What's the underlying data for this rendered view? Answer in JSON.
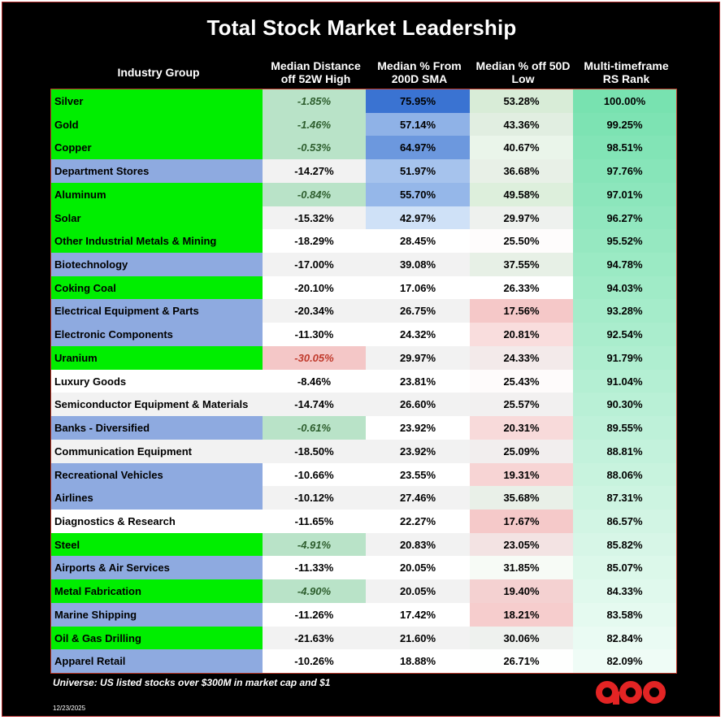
{
  "title": "Total Stock Market Leadership",
  "chart_data": {
    "type": "table",
    "title": "Total Stock Market Leadership",
    "columns": [
      "Industry Group",
      "Median Distance off 52W High",
      "Median % From 200D SMA",
      "Median % off 50D Low",
      "Multi-timeframe RS Rank"
    ],
    "rows": [
      {
        "group": "Silver",
        "group_color": "#00ee00",
        "dist_52w_high": "-1.85%",
        "from_200d_sma": "75.95%",
        "off_50d_low": "53.28%",
        "rs_rank": "100.00%"
      },
      {
        "group": "Gold",
        "group_color": "#00ee00",
        "dist_52w_high": "-1.46%",
        "from_200d_sma": "57.14%",
        "off_50d_low": "43.36%",
        "rs_rank": "99.25%"
      },
      {
        "group": "Copper",
        "group_color": "#00ee00",
        "dist_52w_high": "-0.53%",
        "from_200d_sma": "64.97%",
        "off_50d_low": "40.67%",
        "rs_rank": "98.51%"
      },
      {
        "group": "Department Stores",
        "group_color": "#8eaae0",
        "dist_52w_high": "-14.27%",
        "from_200d_sma": "51.97%",
        "off_50d_low": "36.68%",
        "rs_rank": "97.76%"
      },
      {
        "group": "Aluminum",
        "group_color": "#00ee00",
        "dist_52w_high": "-0.84%",
        "from_200d_sma": "55.70%",
        "off_50d_low": "49.58%",
        "rs_rank": "97.01%"
      },
      {
        "group": "Solar",
        "group_color": "#00ee00",
        "dist_52w_high": "-15.32%",
        "from_200d_sma": "42.97%",
        "off_50d_low": "29.97%",
        "rs_rank": "96.27%"
      },
      {
        "group": "Other Industrial Metals & Mining",
        "group_color": "#00ee00",
        "dist_52w_high": "-18.29%",
        "from_200d_sma": "28.45%",
        "off_50d_low": "25.50%",
        "rs_rank": "95.52%"
      },
      {
        "group": "Biotechnology",
        "group_color": "#8eaae0",
        "dist_52w_high": "-17.00%",
        "from_200d_sma": "39.08%",
        "off_50d_low": "37.55%",
        "rs_rank": "94.78%"
      },
      {
        "group": "Coking Coal",
        "group_color": "#00ee00",
        "dist_52w_high": "-20.10%",
        "from_200d_sma": "17.06%",
        "off_50d_low": "26.33%",
        "rs_rank": "94.03%"
      },
      {
        "group": "Electrical Equipment & Parts",
        "group_color": "#8eaae0",
        "dist_52w_high": "-20.34%",
        "from_200d_sma": "26.75%",
        "off_50d_low": "17.56%",
        "rs_rank": "93.28%"
      },
      {
        "group": "Electronic Components",
        "group_color": "#8eaae0",
        "dist_52w_high": "-11.30%",
        "from_200d_sma": "24.32%",
        "off_50d_low": "20.81%",
        "rs_rank": "92.54%"
      },
      {
        "group": "Uranium",
        "group_color": "#00ee00",
        "dist_52w_high": "-30.05%",
        "from_200d_sma": "29.97%",
        "off_50d_low": "24.33%",
        "rs_rank": "91.79%"
      },
      {
        "group": "Luxury Goods",
        "group_color": "#ffffff",
        "dist_52w_high": "-8.46%",
        "from_200d_sma": "23.81%",
        "off_50d_low": "25.43%",
        "rs_rank": "91.04%"
      },
      {
        "group": "Semiconductor Equipment & Materials",
        "group_color": "#f2f2f2",
        "dist_52w_high": "-14.74%",
        "from_200d_sma": "26.60%",
        "off_50d_low": "25.57%",
        "rs_rank": "90.30%"
      },
      {
        "group": "Banks - Diversified",
        "group_color": "#8eaae0",
        "dist_52w_high": "-0.61%",
        "from_200d_sma": "23.92%",
        "off_50d_low": "20.31%",
        "rs_rank": "89.55%"
      },
      {
        "group": "Communication Equipment",
        "group_color": "#f2f2f2",
        "dist_52w_high": "-18.50%",
        "from_200d_sma": "23.92%",
        "off_50d_low": "25.09%",
        "rs_rank": "88.81%"
      },
      {
        "group": "Recreational Vehicles",
        "group_color": "#8eaae0",
        "dist_52w_high": "-10.66%",
        "from_200d_sma": "23.55%",
        "off_50d_low": "19.31%",
        "rs_rank": "88.06%"
      },
      {
        "group": "Airlines",
        "group_color": "#8eaae0",
        "dist_52w_high": "-10.12%",
        "from_200d_sma": "27.46%",
        "off_50d_low": "35.68%",
        "rs_rank": "87.31%"
      },
      {
        "group": "Diagnostics & Research",
        "group_color": "#ffffff",
        "dist_52w_high": "-11.65%",
        "from_200d_sma": "22.27%",
        "off_50d_low": "17.67%",
        "rs_rank": "86.57%"
      },
      {
        "group": "Steel",
        "group_color": "#00ee00",
        "dist_52w_high": "-4.91%",
        "from_200d_sma": "20.83%",
        "off_50d_low": "23.05%",
        "rs_rank": "85.82%"
      },
      {
        "group": "Airports & Air Services",
        "group_color": "#8eaae0",
        "dist_52w_high": "-11.33%",
        "from_200d_sma": "20.05%",
        "off_50d_low": "31.85%",
        "rs_rank": "85.07%"
      },
      {
        "group": "Metal Fabrication",
        "group_color": "#00ee00",
        "dist_52w_high": "-4.90%",
        "from_200d_sma": "20.05%",
        "off_50d_low": "19.40%",
        "rs_rank": "84.33%"
      },
      {
        "group": "Marine Shipping",
        "group_color": "#8eaae0",
        "dist_52w_high": "-11.26%",
        "from_200d_sma": "17.42%",
        "off_50d_low": "18.21%",
        "rs_rank": "83.58%"
      },
      {
        "group": "Oil & Gas Drilling",
        "group_color": "#00ee00",
        "dist_52w_high": "-21.63%",
        "from_200d_sma": "21.60%",
        "off_50d_low": "30.06%",
        "rs_rank": "82.84%"
      },
      {
        "group": "Apparel Retail",
        "group_color": "#8eaae0",
        "dist_52w_high": "-10.26%",
        "from_200d_sma": "18.88%",
        "off_50d_low": "26.71%",
        "rs_rank": "82.09%"
      }
    ]
  },
  "footnote": "Universe: US listed stocks over $300M in market cap and $1",
  "date": "12/23/2025",
  "logo": {
    "icon": "aoo-logo-icon",
    "color": "#e32424"
  }
}
